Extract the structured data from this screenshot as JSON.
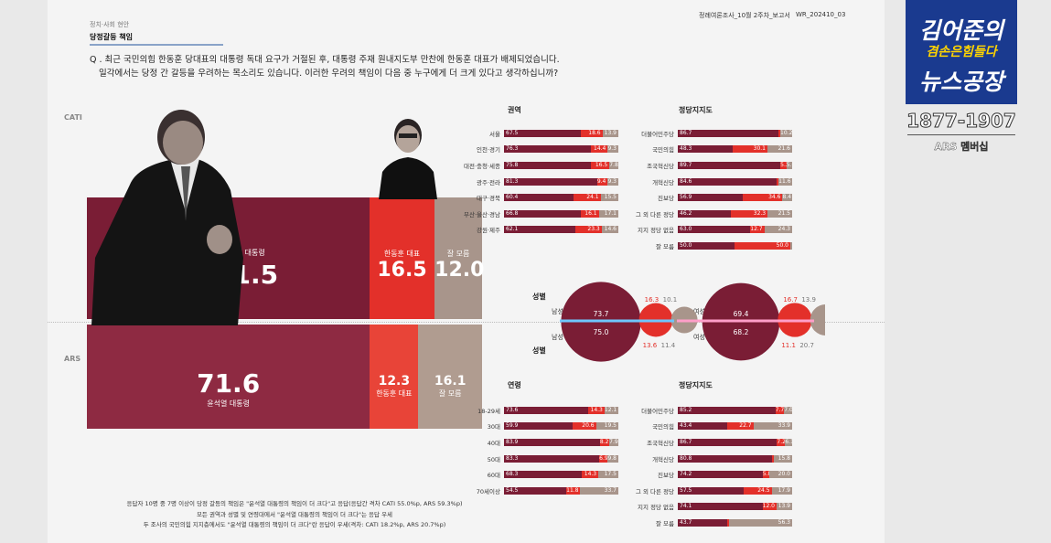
{
  "header": {
    "category": "정치·사회 현안",
    "section": "당정갈등 책임",
    "report": "정례여론조사_10월 2주차_보고서",
    "report_id": "WR_202410_03"
  },
  "question": {
    "line1": "Q . 최근 국민의힘 한동훈 당대표의 대통령 독대 요구가 거절된 후, 대통령 주재 원내지도부 만찬에 한동훈 대표가 배제되었습니다.",
    "line2": "일각에서는 당정 간 갈등을 우려하는 목소리도 있습니다. 이러한 우려의 책임이 다음 중 누구에게 더 크게 있다고 생각하십니까?"
  },
  "modes": {
    "cati": "CATI",
    "ars": "ARS"
  },
  "colors": {
    "yoon": "#7a1d35",
    "han": "#e3302a",
    "dk": "#a8958b",
    "yoon_light": "#8e2a42",
    "han_light": "#e84438",
    "dk_light": "#b09c90"
  },
  "chart_data": [
    {
      "type": "bar",
      "orientation": "horizontal-stacked",
      "mode": "CATI",
      "categories": [
        "윤석열 대통령",
        "한동훈 대표",
        "잘 모름"
      ],
      "values": [
        71.5,
        16.5,
        12.0
      ]
    },
    {
      "type": "bar",
      "orientation": "horizontal-stacked",
      "mode": "ARS",
      "categories": [
        "윤석열 대통령",
        "한동훈 대표",
        "잘 모름"
      ],
      "values": [
        71.6,
        12.3,
        16.1
      ]
    },
    {
      "type": "bar",
      "orientation": "horizontal-stacked",
      "title": "권역",
      "mode": "CATI",
      "categories": [
        "서울",
        "인천·경기",
        "대전·충청·세종",
        "광주·전라",
        "대구·경북",
        "부산·울산·경남",
        "강원·제주"
      ],
      "series": [
        {
          "values": [
            67.5,
            76.3,
            75.8,
            81.3,
            60.4,
            66.8,
            62.1
          ]
        },
        {
          "values": [
            18.6,
            14.4,
            16.5,
            9.4,
            24.1,
            16.1,
            23.3
          ]
        },
        {
          "values": [
            13.9,
            9.3,
            7.8,
            9.3,
            15.5,
            17.1,
            14.6
          ]
        }
      ]
    },
    {
      "type": "bar",
      "orientation": "horizontal-stacked",
      "title": "정당지지도",
      "mode": "CATI",
      "categories": [
        "더불어민주당",
        "국민의힘",
        "조국혁신당",
        "개혁신당",
        "진보당",
        "그 외 다른 정당",
        "지지 정당 없음",
        "잘 모름"
      ],
      "series": [
        {
          "values": [
            86.7,
            48.3,
            89.7,
            84.6,
            56.9,
            46.2,
            63.0,
            50.0
          ]
        },
        {
          "values": [
            0,
            30.1,
            5.3,
            0,
            34.6,
            32.3,
            12.7,
            50.0
          ]
        },
        {
          "values": [
            10.2,
            21.6,
            5.0,
            11.6,
            8.4,
            21.5,
            24.3,
            0
          ]
        }
      ]
    },
    {
      "type": "pie",
      "title": "성별",
      "label_left": "남성",
      "label_right": "여성",
      "cati_male": [
        73.7,
        16.3,
        10.1
      ],
      "ars_male": [
        75.0,
        13.6,
        11.4
      ],
      "cati_female": [
        69.4,
        16.7,
        13.9
      ],
      "ars_female": [
        68.2,
        11.1,
        20.7
      ]
    },
    {
      "type": "bar",
      "orientation": "horizontal-stacked",
      "title": "연령",
      "mode": "ARS",
      "categories": [
        "18-29세",
        "30대",
        "40대",
        "50대",
        "60대",
        "70세이상"
      ],
      "series": [
        {
          "values": [
            73.6,
            59.9,
            83.9,
            83.3,
            68.3,
            54.5
          ]
        },
        {
          "values": [
            14.3,
            20.6,
            8.2,
            6.9,
            14.3,
            11.8
          ]
        },
        {
          "values": [
            12.1,
            19.5,
            7.9,
            9.8,
            17.5,
            33.7
          ]
        }
      ]
    },
    {
      "type": "bar",
      "orientation": "horizontal-stacked",
      "title": "정당지지도",
      "mode": "ARS",
      "categories": [
        "더불어민주당",
        "국민의힘",
        "조국혁신당",
        "개혁신당",
        "진보당",
        "그 외 다른 정당",
        "지지 정당 없음",
        "잘 모름"
      ],
      "series": [
        {
          "values": [
            85.2,
            43.4,
            86.7,
            80.8,
            74.2,
            57.5,
            74.1,
            43.7
          ]
        },
        {
          "values": [
            7.7,
            22.7,
            7.2,
            0,
            5.8,
            24.5,
            12.0,
            0
          ]
        },
        {
          "values": [
            7.0,
            33.9,
            6.1,
            15.8,
            20.0,
            17.9,
            13.9,
            56.3
          ]
        }
      ]
    }
  ],
  "footnote": {
    "l1": "응답자 10명 중 7명 이상이 당정 갈등의 책임은 \"윤석열 대통령의 책임이 더 크다\"고 응답(응답간 격차 CATI 55.0%p, ARS 59.3%p)",
    "l2": "모든 권역과 성별 및 연령대에서 \"윤석열 대통령의 책임이 더 크다\"는 응답 우세",
    "l3": "두 조사의 국민의힘 지지층에서도 \"윤석열 대통령의 책임이 더 크다\"란 응답이 우세(격차: CATI 18.2%p, ARS 20.7%p)"
  },
  "channel": {
    "line1": "김어준의",
    "line2": "겸손은힘들다",
    "line3": "뉴스공장",
    "phone": "1877-1907",
    "ars": "ARS 멤버십"
  }
}
